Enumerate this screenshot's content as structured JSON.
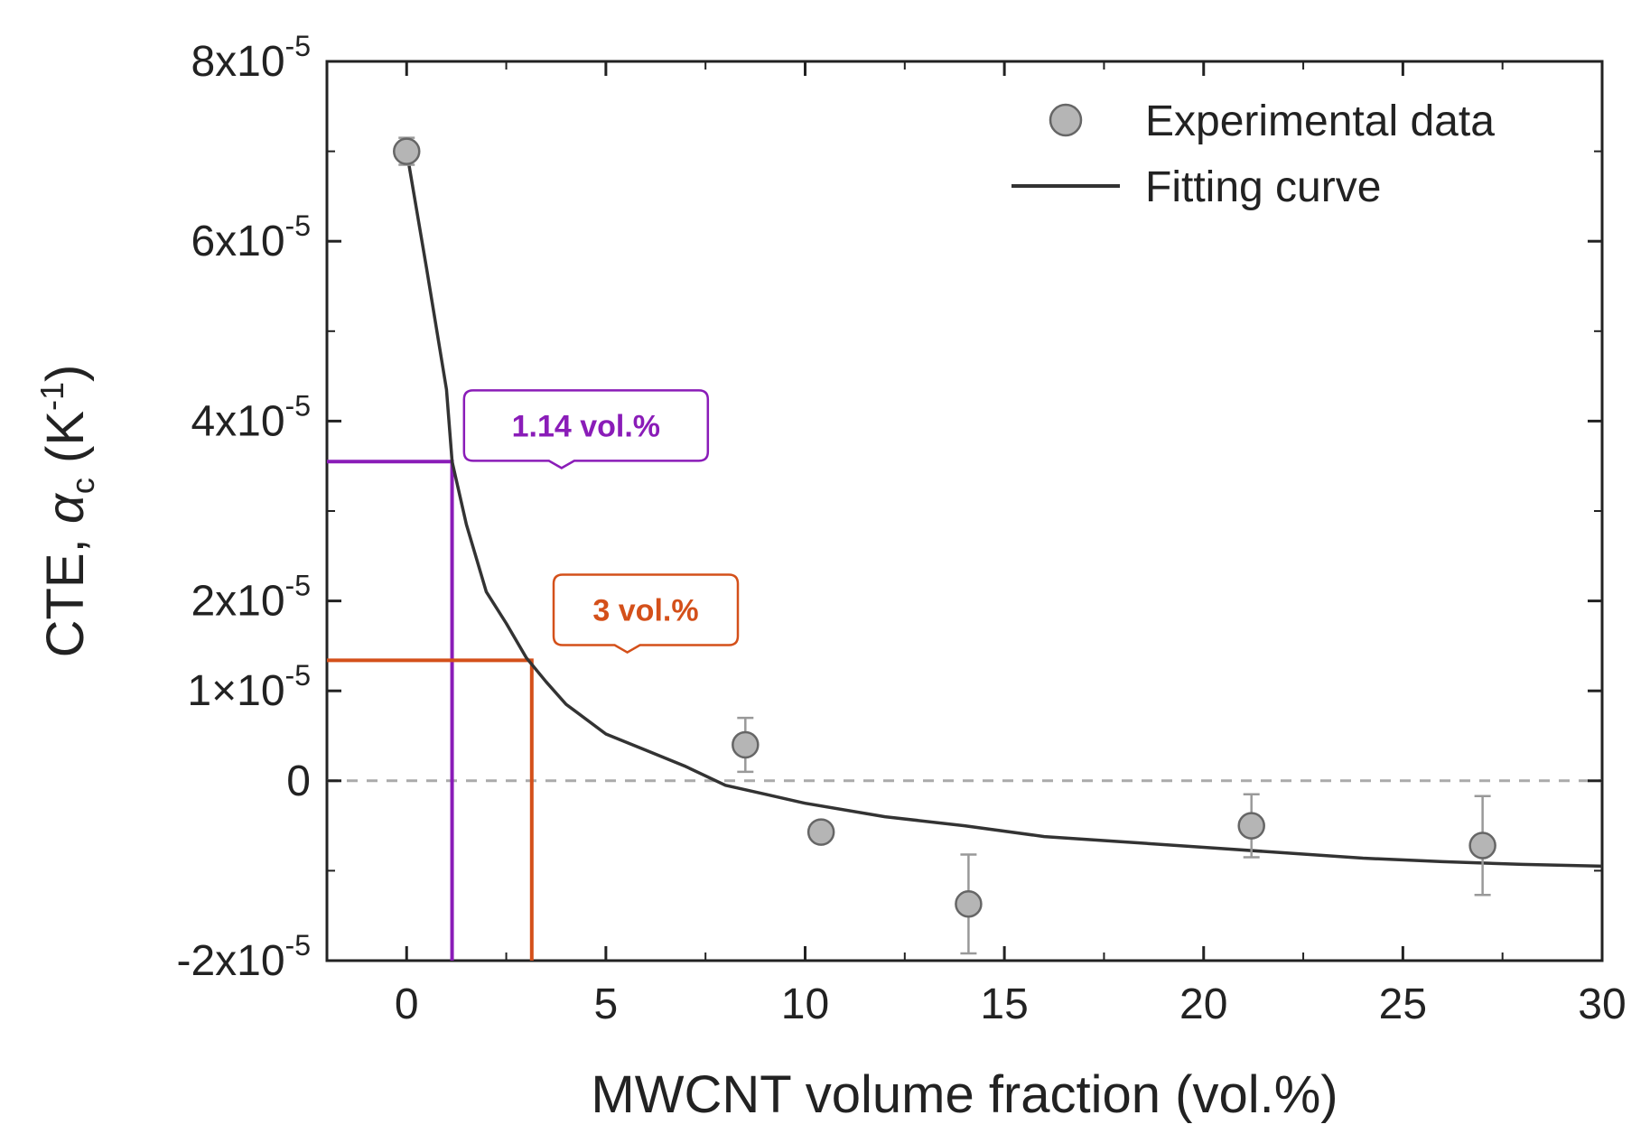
{
  "chart_data": {
    "type": "scatter",
    "title": "",
    "xlabel": "MWCNT volume fraction (vol.%)",
    "ylabel_prefix": "CTE, ",
    "ylabel_symbol": "α",
    "ylabel_symbol_sub": "c",
    "ylabel_unit_open": " (K",
    "ylabel_unit_sup": "-1",
    "ylabel_unit_close": ")",
    "xlim": [
      -2,
      30
    ],
    "ylim": [
      -2e-05,
      8e-05
    ],
    "x_ticks": [
      0,
      5,
      10,
      15,
      20,
      25,
      30
    ],
    "x_tick_labels": [
      "0",
      "5",
      "10",
      "15",
      "20",
      "25",
      "30"
    ],
    "y_ticks": [
      {
        "value": 8e-05,
        "base": "8x10",
        "exp": "-5"
      },
      {
        "value": 6e-05,
        "base": "6x10",
        "exp": "-5"
      },
      {
        "value": 4e-05,
        "base": "4x10",
        "exp": "-5"
      },
      {
        "value": 2e-05,
        "base": "2x10",
        "exp": "-5"
      },
      {
        "value": 1e-05,
        "base": "1×10",
        "exp": "-5"
      },
      {
        "value": 0,
        "base": "0",
        "exp": ""
      },
      {
        "value": -2e-05,
        "base": "-2x10",
        "exp": "-5"
      }
    ],
    "zero_reference_line": 0,
    "series": [
      {
        "name": "Experimental data",
        "kind": "points_with_error_bars",
        "color": "#b5b5b5",
        "points": [
          {
            "x": 0,
            "y": 7e-05,
            "err": 1.5e-06
          },
          {
            "x": 8.5,
            "y": 4e-06,
            "err": 3e-06
          },
          {
            "x": 10.4,
            "y": -5.7e-06,
            "err": 0.0
          },
          {
            "x": 14.1,
            "y": -1.37e-05,
            "err": 5.5e-06
          },
          {
            "x": 21.2,
            "y": -5e-06,
            "err": 3.5e-06
          },
          {
            "x": 27.0,
            "y": -7.2e-06,
            "err": 5.5e-06
          }
        ]
      },
      {
        "name": "Fitting curve",
        "kind": "line",
        "color": "#333333",
        "x": [
          0,
          0.5,
          1.0,
          1.14,
          1.5,
          2.0,
          2.5,
          3.0,
          3.5,
          4.0,
          5.0,
          6.0,
          7.0,
          8.0,
          9.0,
          10.0,
          12.0,
          14.0,
          16.0,
          18.0,
          20.0,
          22.0,
          24.0,
          26.0,
          28.0,
          30.0
        ],
        "y": [
          7e-05,
          5.7e-05,
          4.35e-05,
          3.55e-05,
          2.85e-05,
          2.1e-05,
          1.75e-05,
          1.37e-05,
          1.1e-05,
          8.5e-06,
          5.2e-06,
          3.4e-06,
          1.6e-06,
          -5e-07,
          -1.5e-06,
          -2.5e-06,
          -4e-06,
          -5e-06,
          -6.2e-06,
          -6.8e-06,
          -7.4e-06,
          -8e-06,
          -8.6e-06,
          -9e-06,
          -9.3e-06,
          -9.5e-06
        ]
      }
    ],
    "annotations": [
      {
        "label": "1.14 vol.%",
        "x": 1.14,
        "y": 3.55e-05,
        "color": "#8a1cb8",
        "label_x": 4.5,
        "label_y": 3.95e-05
      },
      {
        "label": "3 vol.%",
        "x": 3.14,
        "y": 1.34e-05,
        "color": "#d4501a",
        "label_x": 6.0,
        "label_y": 1.9e-05
      }
    ],
    "legend": {
      "position": "top-right",
      "entries": [
        "Experimental data",
        "Fitting curve"
      ]
    }
  }
}
